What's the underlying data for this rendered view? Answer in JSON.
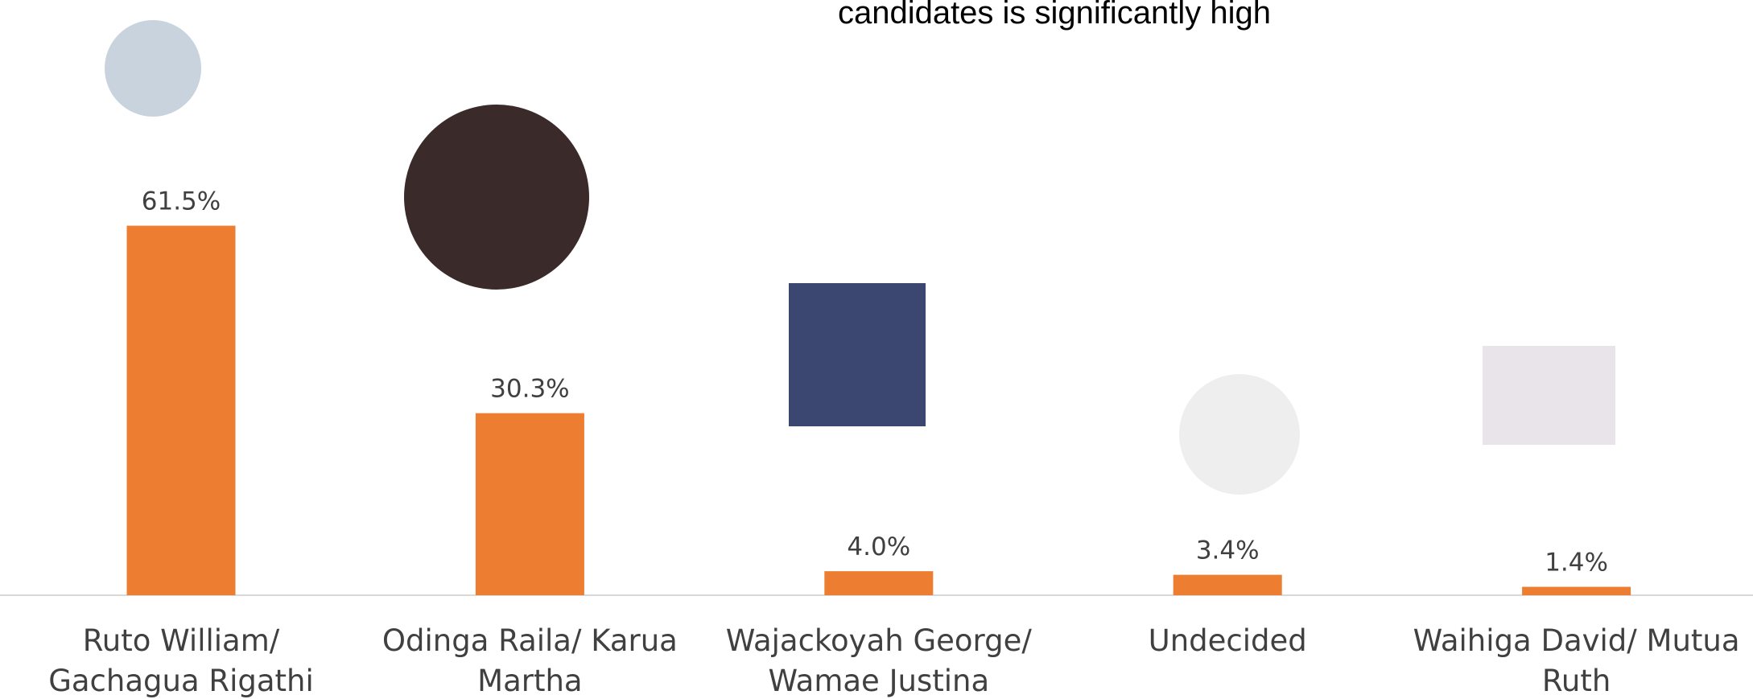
{
  "chart_data": {
    "type": "bar",
    "title": "candidates is significantly high",
    "categories": [
      "Ruto William/ Gachagua Rigathi",
      "Odinga Raila/ Karua Martha",
      "Wajackoyah George/ Wamae Justina",
      "Undecided",
      "Waihiga David/ Mutua Ruth"
    ],
    "values": [
      61.5,
      30.3,
      4.0,
      3.4,
      1.4
    ],
    "value_labels": [
      "61.5%",
      "30.3%",
      "4.0%",
      "3.4%",
      "1.4%"
    ],
    "color": "#ed7d31"
  }
}
